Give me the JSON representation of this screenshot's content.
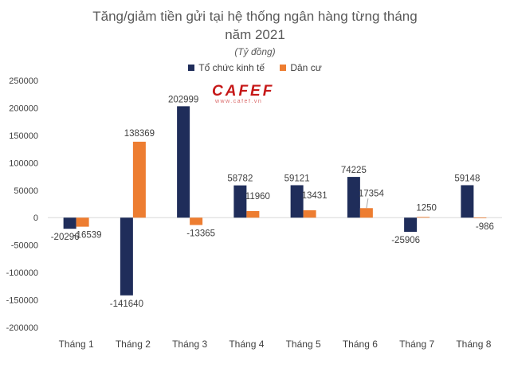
{
  "chart_data": {
    "type": "bar",
    "title_line1": "Tăng/giảm tiền gửi tại hệ thống ngân hàng từng tháng",
    "title_line2": "năm 2021",
    "subtitle": "(Tỷ đồng)",
    "categories": [
      "Tháng 1",
      "Tháng 2",
      "Tháng 3",
      "Tháng 4",
      "Tháng 5",
      "Tháng 6",
      "Tháng 7",
      "Tháng 8"
    ],
    "series": [
      {
        "name": "Tổ chức kinh tế",
        "color": "#1f2d5a",
        "values": [
          -20296,
          -141640,
          202999,
          58782,
          59121,
          74225,
          -25906,
          59148
        ]
      },
      {
        "name": "Dân cư",
        "color": "#ed7d31",
        "values": [
          -16539,
          138369,
          -13365,
          11960,
          13431,
          17354,
          1250,
          -986
        ]
      }
    ],
    "ylim": [
      -200000,
      250000
    ],
    "yticks": [
      250000,
      200000,
      150000,
      100000,
      50000,
      0,
      -50000,
      -100000,
      -150000,
      -200000
    ],
    "legend_position": "top-center",
    "grid": false
  },
  "watermark": {
    "text": "CAFEF",
    "subtext": "www.cafef.vn",
    "color": "#c00000"
  }
}
